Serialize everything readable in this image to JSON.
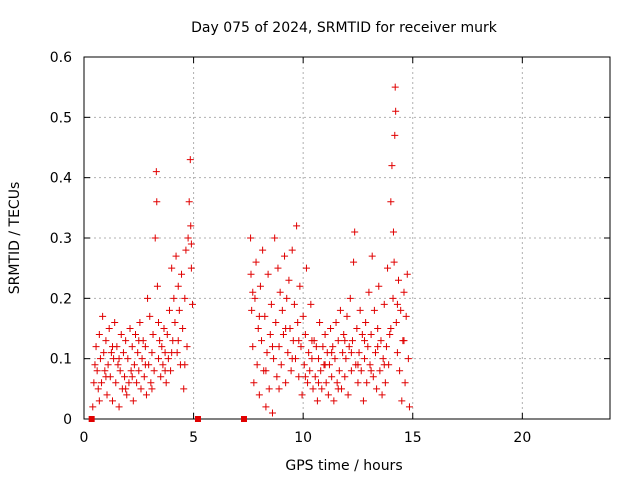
{
  "chart_data": {
    "type": "scatter",
    "title": "Day 075 of 2024, SRMTID for receiver murk",
    "xlabel": "GPS time / hours",
    "ylabel": "SRMTID / TECUs",
    "xlim": [
      0,
      24
    ],
    "ylim": [
      0,
      0.6
    ],
    "x_ticks": [
      0,
      5,
      10,
      15,
      20
    ],
    "y_ticks": [
      0,
      0.1,
      0.2,
      0.3,
      0.4,
      0.5,
      0.6
    ],
    "x_tick_labels": [
      "0",
      "5",
      "10",
      "15",
      "20"
    ],
    "y_tick_labels": [
      "0",
      "0.1",
      "0.2",
      "0.3",
      "0.4",
      "0.5",
      "0.6"
    ],
    "grid": true,
    "marker": "plus",
    "color": "#e00000",
    "zero_markers": [
      {
        "x": 0.35,
        "y": 0
      },
      {
        "x": 5.2,
        "y": 0
      },
      {
        "x": 7.3,
        "y": 0
      }
    ],
    "series": [
      {
        "name": "SRMTID",
        "points": [
          [
            0.4,
            0.02
          ],
          [
            0.5,
            0.09
          ],
          [
            0.55,
            0.12
          ],
          [
            0.6,
            0.08
          ],
          [
            0.65,
            0.05
          ],
          [
            0.7,
            0.14
          ],
          [
            0.75,
            0.1
          ],
          [
            0.8,
            0.06
          ],
          [
            0.85,
            0.17
          ],
          [
            0.9,
            0.11
          ],
          [
            0.95,
            0.08
          ],
          [
            1.0,
            0.13
          ],
          [
            1.05,
            0.04
          ],
          [
            1.1,
            0.09
          ],
          [
            1.15,
            0.15
          ],
          [
            1.2,
            0.07
          ],
          [
            1.25,
            0.11
          ],
          [
            1.3,
            0.03
          ],
          [
            1.35,
            0.1
          ],
          [
            1.4,
            0.16
          ],
          [
            1.45,
            0.06
          ],
          [
            1.5,
            0.12
          ],
          [
            1.55,
            0.09
          ],
          [
            1.6,
            0.02
          ],
          [
            1.65,
            0.08
          ],
          [
            1.7,
            0.14
          ],
          [
            1.75,
            0.05
          ],
          [
            1.8,
            0.11
          ],
          [
            1.85,
            0.07
          ],
          [
            1.9,
            0.13
          ],
          [
            1.95,
            0.04
          ],
          [
            2.0,
            0.1
          ],
          [
            2.05,
            0.06
          ],
          [
            2.1,
            0.15
          ],
          [
            2.15,
            0.08
          ],
          [
            2.2,
            0.12
          ],
          [
            2.25,
            0.03
          ],
          [
            2.3,
            0.09
          ],
          [
            2.35,
            0.14
          ],
          [
            2.4,
            0.06
          ],
          [
            2.45,
            0.11
          ],
          [
            2.5,
            0.08
          ],
          [
            2.55,
            0.16
          ],
          [
            2.6,
            0.05
          ],
          [
            2.65,
            0.1
          ],
          [
            2.7,
            0.13
          ],
          [
            2.75,
            0.07
          ],
          [
            2.8,
            0.12
          ],
          [
            2.85,
            0.04
          ],
          [
            2.9,
            0.2
          ],
          [
            2.95,
            0.09
          ],
          [
            3.0,
            0.17
          ],
          [
            3.05,
            0.06
          ],
          [
            3.1,
            0.11
          ],
          [
            3.15,
            0.14
          ],
          [
            3.2,
            0.08
          ],
          [
            3.25,
            0.3
          ],
          [
            3.3,
            0.41
          ],
          [
            3.32,
            0.36
          ],
          [
            3.35,
            0.22
          ],
          [
            3.4,
            0.1
          ],
          [
            3.45,
            0.13
          ],
          [
            3.5,
            0.07
          ],
          [
            3.55,
            0.12
          ],
          [
            3.6,
            0.09
          ],
          [
            3.65,
            0.15
          ],
          [
            3.7,
            0.11
          ],
          [
            3.75,
            0.06
          ],
          [
            3.8,
            0.14
          ],
          [
            3.85,
            0.1
          ],
          [
            3.9,
            0.18
          ],
          [
            3.95,
            0.08
          ],
          [
            4.0,
            0.25
          ],
          [
            4.05,
            0.13
          ],
          [
            4.1,
            0.2
          ],
          [
            4.15,
            0.16
          ],
          [
            4.2,
            0.27
          ],
          [
            4.25,
            0.11
          ],
          [
            4.3,
            0.22
          ],
          [
            4.35,
            0.18
          ],
          [
            4.4,
            0.09
          ],
          [
            4.45,
            0.24
          ],
          [
            4.5,
            0.15
          ],
          [
            4.55,
            0.05
          ],
          [
            4.6,
            0.2
          ],
          [
            4.65,
            0.28
          ],
          [
            4.7,
            0.12
          ],
          [
            4.75,
            0.3
          ],
          [
            4.8,
            0.36
          ],
          [
            4.85,
            0.43
          ],
          [
            4.87,
            0.32
          ],
          [
            4.9,
            0.25
          ],
          [
            4.95,
            0.19
          ],
          [
            0.45,
            0.06
          ],
          [
            0.7,
            0.03
          ],
          [
            1.0,
            0.07
          ],
          [
            1.3,
            0.12
          ],
          [
            1.6,
            0.1
          ],
          [
            1.9,
            0.05
          ],
          [
            2.2,
            0.07
          ],
          [
            2.5,
            0.13
          ],
          [
            2.8,
            0.09
          ],
          [
            3.1,
            0.05
          ],
          [
            3.4,
            0.16
          ],
          [
            3.7,
            0.08
          ],
          [
            4.0,
            0.11
          ],
          [
            4.3,
            0.13
          ],
          [
            4.6,
            0.09
          ],
          [
            4.9,
            0.29
          ],
          [
            7.6,
            0.3
          ],
          [
            7.62,
            0.24
          ],
          [
            7.65,
            0.18
          ],
          [
            7.7,
            0.12
          ],
          [
            7.75,
            0.06
          ],
          [
            7.8,
            0.2
          ],
          [
            7.85,
            0.26
          ],
          [
            7.9,
            0.09
          ],
          [
            7.95,
            0.15
          ],
          [
            8.0,
            0.04
          ],
          [
            8.05,
            0.22
          ],
          [
            8.1,
            0.13
          ],
          [
            8.15,
            0.28
          ],
          [
            8.2,
            0.08
          ],
          [
            8.25,
            0.17
          ],
          [
            8.3,
            0.02
          ],
          [
            8.35,
            0.11
          ],
          [
            8.4,
            0.24
          ],
          [
            8.45,
            0.05
          ],
          [
            8.5,
            0.14
          ],
          [
            8.55,
            0.19
          ],
          [
            8.6,
            0.01
          ],
          [
            8.65,
            0.1
          ],
          [
            8.7,
            0.3
          ],
          [
            8.75,
            0.16
          ],
          [
            8.8,
            0.07
          ],
          [
            8.85,
            0.25
          ],
          [
            8.9,
            0.12
          ],
          [
            8.95,
            0.21
          ],
          [
            9.0,
            0.09
          ],
          [
            9.05,
            0.18
          ],
          [
            9.1,
            0.14
          ],
          [
            9.15,
            0.27
          ],
          [
            9.2,
            0.06
          ],
          [
            9.25,
            0.2
          ],
          [
            9.3,
            0.11
          ],
          [
            9.35,
            0.23
          ],
          [
            9.4,
            0.15
          ],
          [
            9.45,
            0.08
          ],
          [
            9.5,
            0.28
          ],
          [
            9.55,
            0.13
          ],
          [
            9.6,
            0.19
          ],
          [
            9.65,
            0.1
          ],
          [
            9.7,
            0.32
          ],
          [
            9.75,
            0.16
          ],
          [
            9.8,
            0.07
          ],
          [
            9.85,
            0.22
          ],
          [
            9.9,
            0.12
          ],
          [
            9.95,
            0.04
          ],
          [
            10.0,
            0.17
          ],
          [
            10.05,
            0.09
          ],
          [
            10.1,
            0.14
          ],
          [
            10.15,
            0.25
          ],
          [
            10.2,
            0.06
          ],
          [
            10.25,
            0.11
          ],
          [
            10.3,
            0.08
          ],
          [
            10.35,
            0.19
          ],
          [
            10.4,
            0.1
          ],
          [
            10.45,
            0.05
          ],
          [
            10.5,
            0.13
          ],
          [
            10.55,
            0.07
          ],
          [
            10.6,
            0.12
          ],
          [
            10.65,
            0.03
          ],
          [
            10.7,
            0.1
          ],
          [
            10.75,
            0.16
          ],
          [
            10.8,
            0.08
          ],
          [
            10.85,
            0.05
          ],
          [
            10.9,
            0.12
          ],
          [
            10.95,
            0.09
          ],
          [
            11.0,
            0.14
          ],
          [
            11.05,
            0.06
          ],
          [
            11.1,
            0.11
          ],
          [
            11.15,
            0.04
          ],
          [
            11.2,
            0.09
          ],
          [
            11.25,
            0.15
          ],
          [
            11.3,
            0.07
          ],
          [
            11.35,
            0.12
          ],
          [
            11.4,
            0.03
          ],
          [
            11.45,
            0.1
          ],
          [
            11.5,
            0.16
          ],
          [
            11.55,
            0.06
          ],
          [
            11.6,
            0.13
          ],
          [
            11.65,
            0.08
          ],
          [
            11.7,
            0.18
          ],
          [
            11.75,
            0.05
          ],
          [
            11.8,
            0.11
          ],
          [
            11.85,
            0.14
          ],
          [
            11.9,
            0.07
          ],
          [
            11.95,
            0.1
          ],
          [
            12.0,
            0.17
          ],
          [
            12.05,
            0.04
          ],
          [
            12.1,
            0.12
          ],
          [
            12.15,
            0.2
          ],
          [
            12.2,
            0.08
          ],
          [
            12.25,
            0.13
          ],
          [
            12.3,
            0.26
          ],
          [
            12.35,
            0.31
          ],
          [
            12.4,
            0.09
          ],
          [
            12.45,
            0.15
          ],
          [
            12.5,
            0.06
          ],
          [
            12.55,
            0.11
          ],
          [
            12.6,
            0.18
          ],
          [
            12.65,
            0.08
          ],
          [
            12.7,
            0.14
          ],
          [
            12.75,
            0.03
          ],
          [
            12.8,
            0.1
          ],
          [
            12.85,
            0.16
          ],
          [
            12.9,
            0.06
          ],
          [
            12.95,
            0.12
          ],
          [
            13.0,
            0.21
          ],
          [
            13.05,
            0.09
          ],
          [
            13.1,
            0.14
          ],
          [
            13.15,
            0.27
          ],
          [
            13.2,
            0.07
          ],
          [
            13.25,
            0.18
          ],
          [
            13.3,
            0.11
          ],
          [
            13.35,
            0.05
          ],
          [
            13.4,
            0.15
          ],
          [
            13.45,
            0.22
          ],
          [
            13.5,
            0.08
          ],
          [
            13.55,
            0.13
          ],
          [
            13.6,
            0.04
          ],
          [
            13.65,
            0.1
          ],
          [
            13.7,
            0.19
          ],
          [
            13.75,
            0.06
          ],
          [
            13.8,
            0.12
          ],
          [
            13.85,
            0.25
          ],
          [
            13.9,
            0.09
          ],
          [
            13.95,
            0.14
          ],
          [
            14.0,
            0.36
          ],
          [
            14.05,
            0.42
          ],
          [
            14.1,
            0.2
          ],
          [
            14.12,
            0.31
          ],
          [
            14.15,
            0.26
          ],
          [
            14.18,
            0.47
          ],
          [
            14.2,
            0.55
          ],
          [
            14.22,
            0.51
          ],
          [
            14.25,
            0.16
          ],
          [
            14.3,
            0.11
          ],
          [
            14.35,
            0.23
          ],
          [
            14.4,
            0.08
          ],
          [
            14.45,
            0.18
          ],
          [
            14.5,
            0.03
          ],
          [
            14.55,
            0.13
          ],
          [
            14.6,
            0.21
          ],
          [
            14.65,
            0.06
          ],
          [
            14.7,
            0.17
          ],
          [
            14.75,
            0.24
          ],
          [
            14.8,
            0.1
          ],
          [
            14.85,
            0.02
          ],
          [
            7.7,
            0.21
          ],
          [
            8.0,
            0.17
          ],
          [
            8.3,
            0.08
          ],
          [
            8.6,
            0.12
          ],
          [
            8.9,
            0.05
          ],
          [
            9.2,
            0.15
          ],
          [
            9.5,
            0.1
          ],
          [
            9.8,
            0.13
          ],
          [
            10.1,
            0.07
          ],
          [
            10.4,
            0.13
          ],
          [
            10.7,
            0.06
          ],
          [
            11.0,
            0.09
          ],
          [
            11.3,
            0.11
          ],
          [
            11.6,
            0.05
          ],
          [
            11.9,
            0.13
          ],
          [
            12.2,
            0.11
          ],
          [
            12.5,
            0.09
          ],
          [
            12.8,
            0.13
          ],
          [
            13.1,
            0.08
          ],
          [
            13.4,
            0.12
          ],
          [
            13.7,
            0.09
          ],
          [
            14.0,
            0.15
          ],
          [
            14.3,
            0.19
          ],
          [
            14.6,
            0.13
          ]
        ]
      }
    ]
  }
}
